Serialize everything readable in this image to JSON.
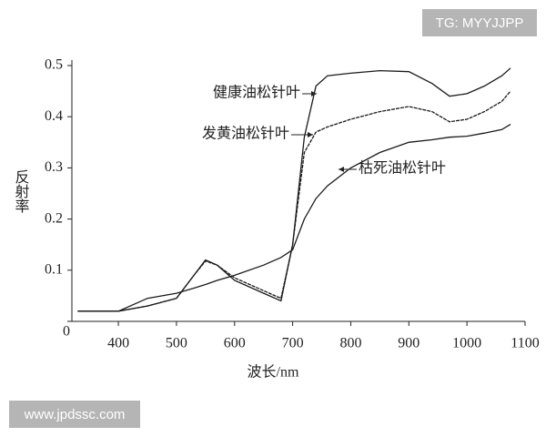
{
  "chart_data": {
    "type": "line",
    "x_label": "波长/nm",
    "y_label": "反射率",
    "x": [
      330,
      400,
      450,
      500,
      530,
      550,
      570,
      600,
      650,
      680,
      700,
      720,
      740,
      760,
      800,
      850,
      900,
      940,
      970,
      1000,
      1030,
      1060,
      1075
    ],
    "series": [
      {
        "name": "健康油松针叶",
        "color": "#1a1a1a",
        "values": [
          0.02,
          0.02,
          0.03,
          0.045,
          0.09,
          0.12,
          0.11,
          0.08,
          0.055,
          0.04,
          0.15,
          0.36,
          0.46,
          0.48,
          0.485,
          0.49,
          0.488,
          0.465,
          0.44,
          0.445,
          0.46,
          0.48,
          0.495
        ]
      },
      {
        "name": "发黄油松针叶",
        "color": "#1a1a1a",
        "values": [
          0.02,
          0.02,
          0.03,
          0.045,
          0.09,
          0.118,
          0.11,
          0.085,
          0.06,
          0.045,
          0.15,
          0.33,
          0.37,
          0.38,
          0.395,
          0.41,
          0.42,
          0.41,
          0.39,
          0.395,
          0.41,
          0.43,
          0.45
        ]
      },
      {
        "name": "枯死油松针叶",
        "color": "#1a1a1a",
        "values": [
          0.02,
          0.02,
          0.045,
          0.055,
          0.065,
          0.072,
          0.08,
          0.09,
          0.11,
          0.125,
          0.14,
          0.2,
          0.24,
          0.265,
          0.3,
          0.33,
          0.35,
          0.355,
          0.36,
          0.362,
          0.368,
          0.375,
          0.385
        ]
      }
    ],
    "xlim": [
      320,
      1100
    ],
    "ylim": [
      0,
      0.5
    ],
    "xticks": [
      400,
      500,
      600,
      700,
      800,
      900,
      1000,
      1100
    ],
    "yticks": [
      0,
      0.1,
      0.2,
      0.3,
      0.4,
      0.5
    ],
    "grid": false
  },
  "watermarks": [
    "TG: MYYJJPP",
    "www.jpdssc.com"
  ]
}
